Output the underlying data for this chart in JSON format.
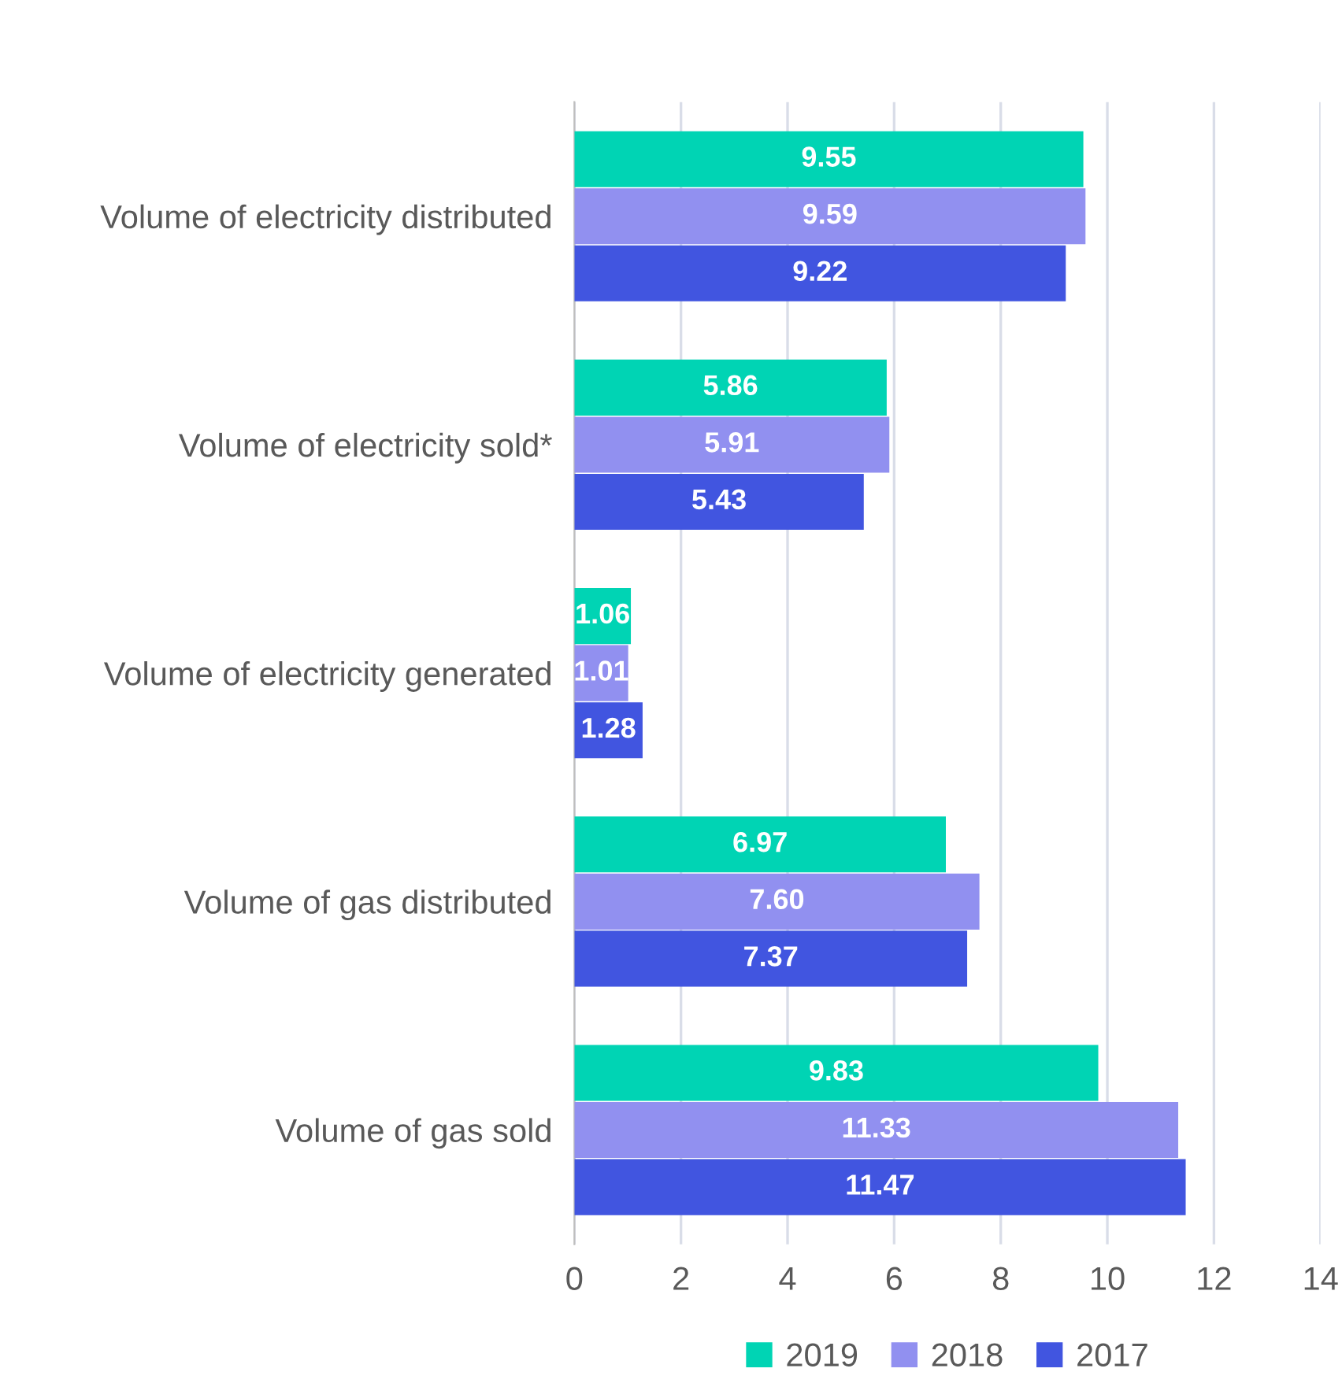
{
  "chart_data": {
    "type": "bar",
    "orientation": "horizontal",
    "categories": [
      "Volume of electricity distributed",
      "Volume of electricity sold*",
      "Volume of electricity generated",
      "Volume of gas distributed",
      "Volume of gas sold"
    ],
    "series": [
      {
        "name": "2019",
        "color": "#00d4b4",
        "values": [
          9.55,
          5.86,
          1.06,
          6.97,
          9.83
        ],
        "value_labels": [
          "9.55",
          "5.86",
          "1.06",
          "6.97",
          "9.83"
        ]
      },
      {
        "name": "2018",
        "color": "#9190f0",
        "values": [
          9.59,
          5.91,
          1.01,
          7.6,
          11.33
        ],
        "value_labels": [
          "9.59",
          "5.91",
          "1.01",
          "7.60",
          "11.33"
        ]
      },
      {
        "name": "2017",
        "color": "#4155e0",
        "values": [
          9.22,
          5.43,
          1.28,
          7.37,
          11.47
        ],
        "value_labels": [
          "9.22",
          "5.43",
          "1.28",
          "7.37",
          "11.47"
        ]
      }
    ],
    "xlim": [
      0,
      14
    ],
    "xticks": [
      0,
      2,
      4,
      6,
      8,
      10,
      12,
      14
    ],
    "grid": "x",
    "legend": "bottom"
  }
}
